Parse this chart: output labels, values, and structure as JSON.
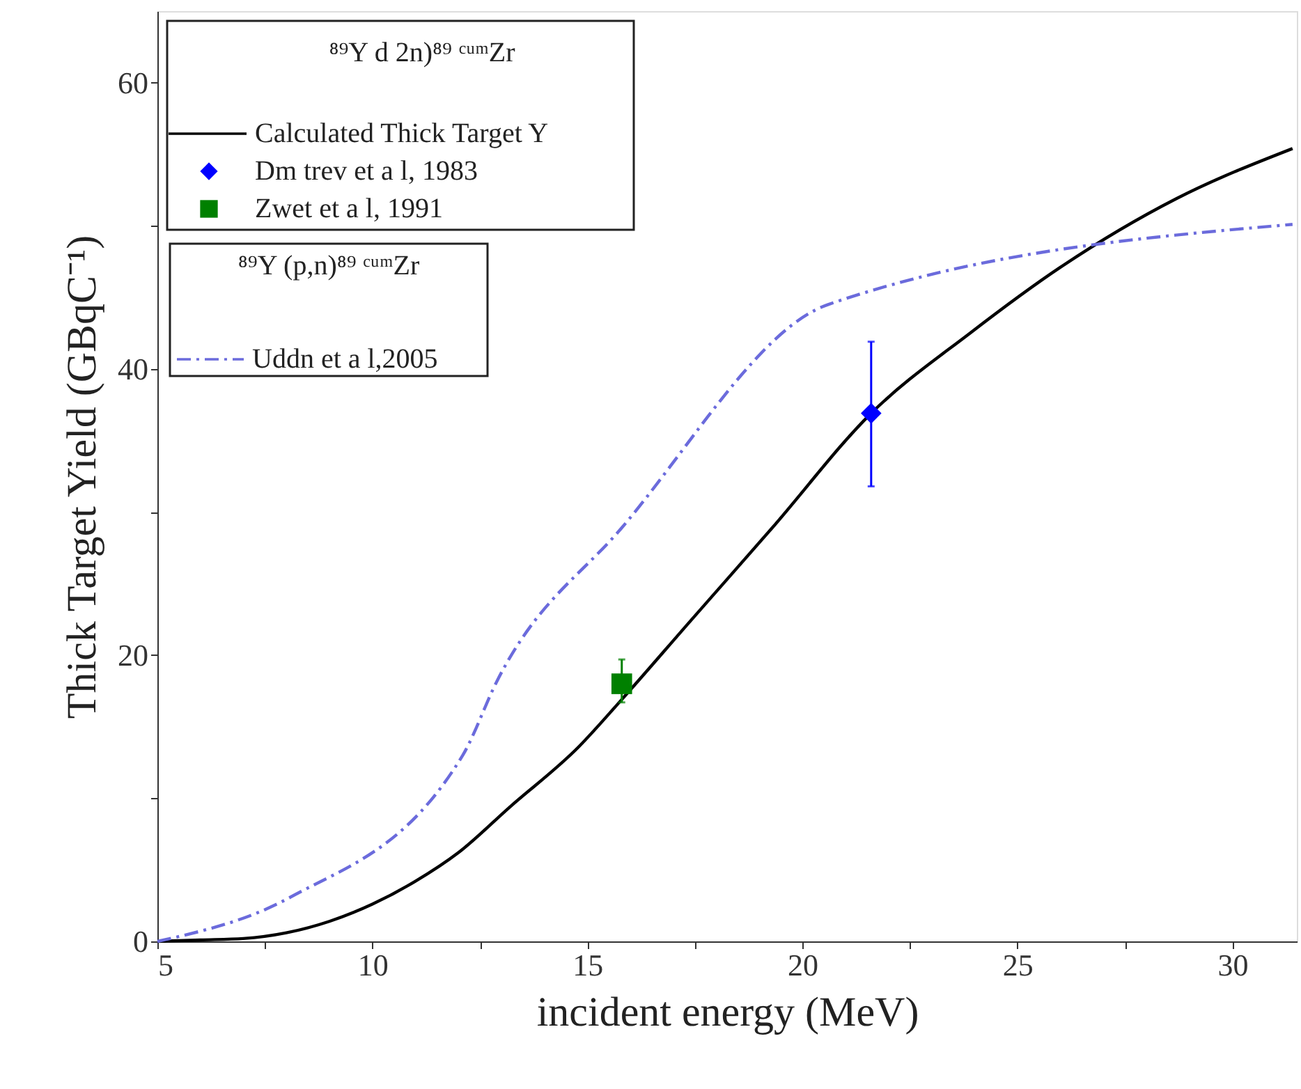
{
  "chart_data": {
    "type": "line",
    "xlabel": "incident energy (MeV)",
    "ylabel": "Thick Target Yield (GBqC⁻¹)",
    "xlim": [
      5,
      31.5
    ],
    "ylim": [
      0,
      65
    ],
    "xticks": [
      5,
      {
        "value": 7.5,
        "label": null
      },
      10,
      {
        "value": 12.5,
        "label": null
      },
      15,
      {
        "value": 17.5,
        "label": null
      },
      20,
      {
        "value": 22.5,
        "label": null
      },
      25,
      {
        "value": 27.5,
        "label": null
      },
      30
    ],
    "yticks": [
      0,
      {
        "value": 10,
        "label": null
      },
      20,
      {
        "value": 30,
        "label": null
      },
      40,
      {
        "value": 50,
        "label": null
      },
      60
    ],
    "grid": false,
    "legend": "top left",
    "annotations": [
      "⁸⁹Y d 2n)⁸⁹ ᶜᵘᵐZr",
      "⁸⁹Y (p,n)⁸⁹ ᶜᵘᵐZr"
    ],
    "series": [
      {
        "name": "Calculated Thick Target Y",
        "type": "line",
        "color": "#000000",
        "marker": "none",
        "line_style": "solid",
        "x": [
          5,
          6,
          7,
          8,
          9,
          10,
          11,
          12,
          13.2,
          14.8,
          15.8,
          17.4,
          19.3,
          21.6,
          23.9,
          26,
          28.7,
          31.4
        ],
        "values": [
          0,
          0.1,
          0.2,
          0.6,
          1.4,
          2.6,
          4.2,
          6.2,
          9.4,
          13.6,
          16.9,
          22.4,
          28.9,
          36.9,
          42.5,
          47.1,
          51.9,
          55.4
        ]
      },
      {
        "name": "Dm trev et a l, 1983",
        "type": "scatter",
        "color": "#0000ff",
        "marker": "diamond",
        "x": [
          21.6
        ],
        "values": [
          36.9
        ],
        "errors": [
          [
            31.8,
            41.9
          ]
        ]
      },
      {
        "name": "Zwet et a l,      1991",
        "type": "scatter",
        "color": "#008000",
        "marker": "square",
        "x": [
          15.8
        ],
        "values": [
          18.0
        ],
        "errors": [
          [
            16.7,
            19.7
          ]
        ]
      },
      {
        "name": "Uddn et a l,2005",
        "type": "line",
        "color": "#6b6bdc",
        "marker": "none",
        "line_style": "dashed",
        "x": [
          5,
          8.1,
          12.1,
          12.9,
          15.8,
          20.6,
          31.4
        ],
        "values": [
          0,
          3.1,
          13.0,
          18.2,
          28.9,
          44.5,
          50.1
        ]
      }
    ]
  }
}
